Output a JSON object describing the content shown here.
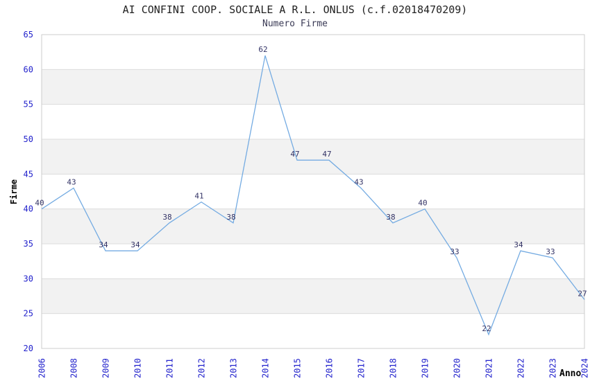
{
  "chart_data": {
    "type": "line",
    "title": "AI CONFINI COOP. SOCIALE A R.L. ONLUS (c.f.02018470209)",
    "subtitle": "Numero Firme",
    "xlabel": "Anno",
    "ylabel": "Firme",
    "categories": [
      "2006",
      "2008",
      "2009",
      "2010",
      "2011",
      "2012",
      "2013",
      "2014",
      "2015",
      "2016",
      "2017",
      "2018",
      "2019",
      "2020",
      "2021",
      "2022",
      "2023",
      "2024"
    ],
    "values": [
      40,
      43,
      34,
      34,
      38,
      41,
      38,
      62,
      47,
      47,
      43,
      38,
      40,
      33,
      22,
      34,
      33,
      27
    ],
    "ylim": [
      20,
      65
    ],
    "ytick_step": 5,
    "yticks": [
      20,
      25,
      30,
      35,
      40,
      45,
      50,
      55,
      60,
      65
    ],
    "grid": "horizontal-alternating-bands",
    "legend": "none",
    "colors": {
      "line": "#74abe2",
      "data_label": "#333366",
      "tick_label": "#2222cc",
      "band": "#f2f2f2",
      "gridline": "#dcdcdc",
      "border": "#cccccc",
      "title": "#222222",
      "subtitle": "#3a3a55",
      "axis_title": "#000000",
      "background": "#ffffff"
    }
  }
}
